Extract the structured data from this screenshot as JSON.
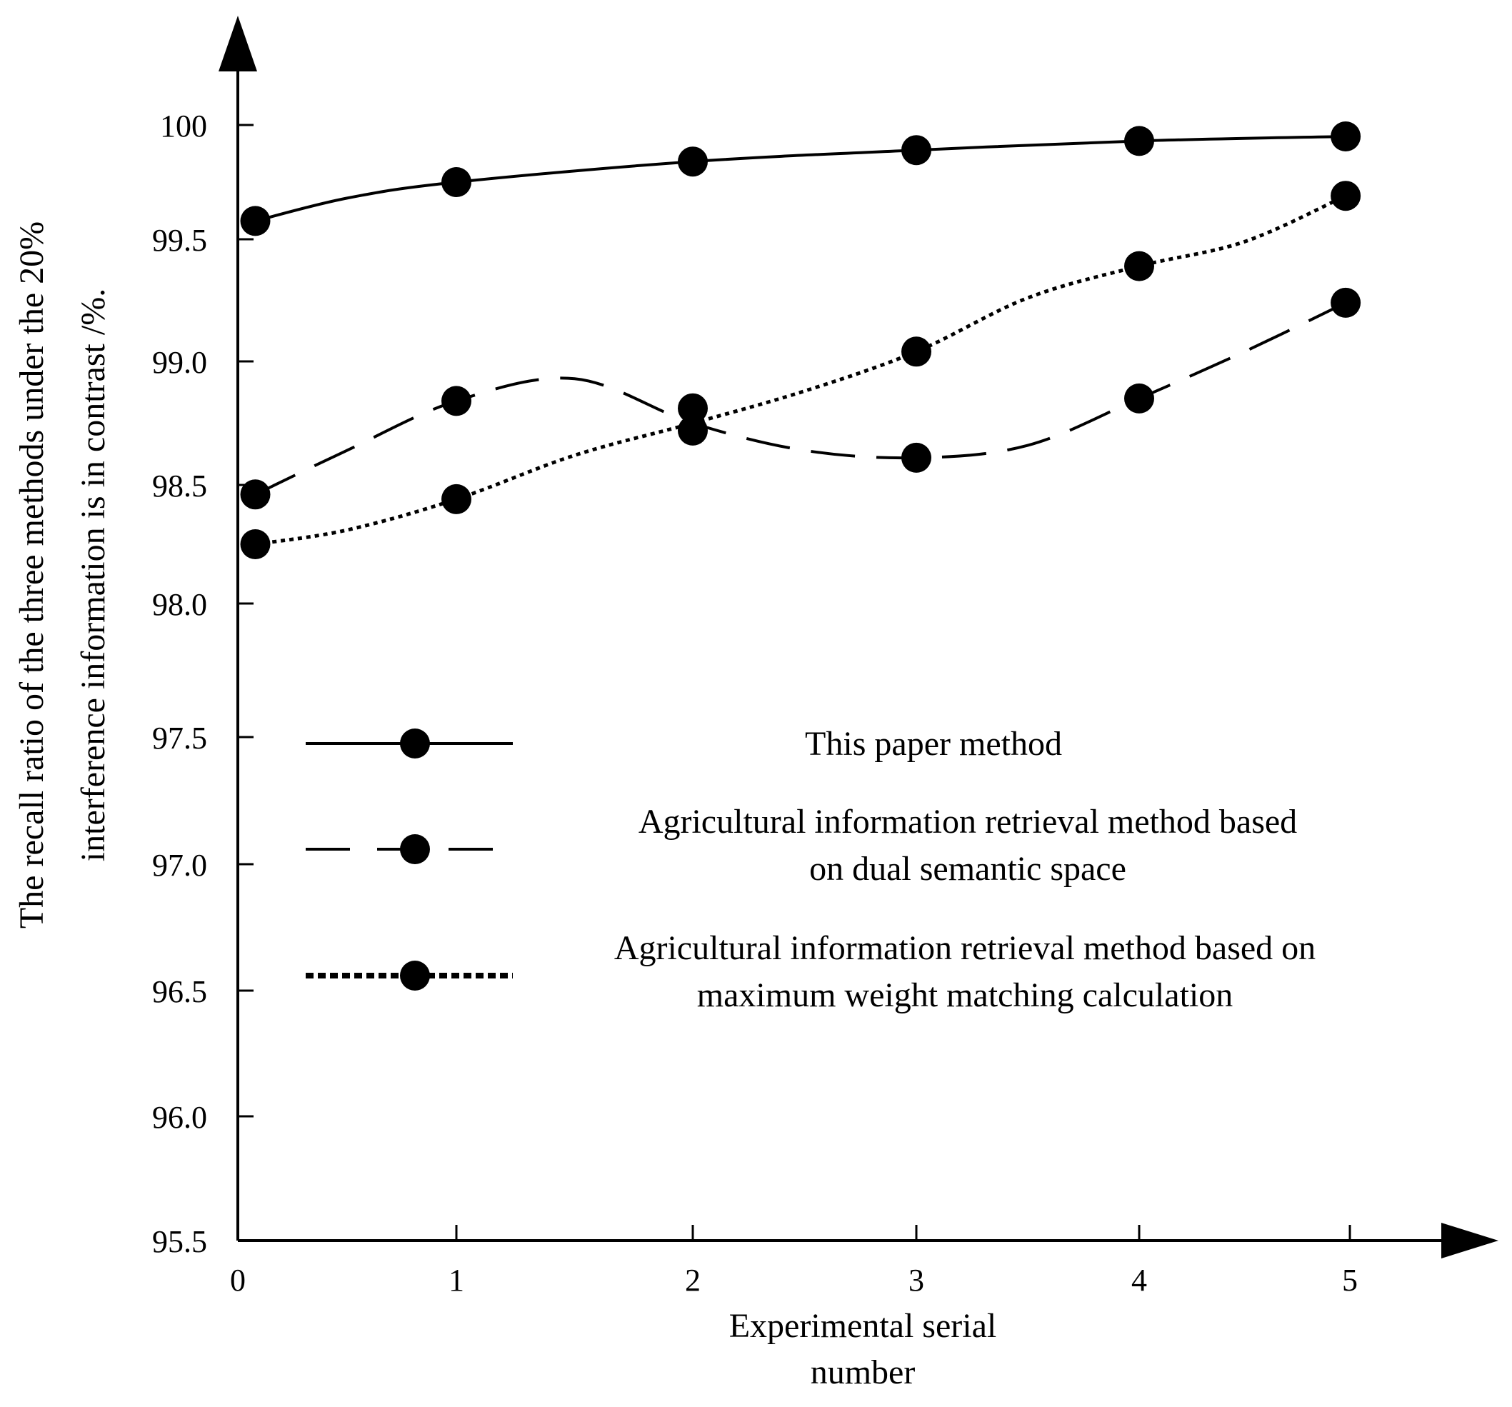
{
  "chart_data": {
    "type": "line",
    "title": "",
    "xlabel_lines": [
      "Experimental serial",
      "number"
    ],
    "ylabel_lines": [
      "The recall ratio of the three methods under the 20%",
      "interference information is in contrast /%."
    ],
    "x_ticks": [
      "0",
      "1",
      "2",
      "3",
      "4",
      "5"
    ],
    "y_ticks": [
      {
        "value": 95.5,
        "label": "95.5"
      },
      {
        "value": 96.0,
        "label": "96.0"
      },
      {
        "value": 96.5,
        "label": "96.5"
      },
      {
        "value": 97.0,
        "label": "97.0"
      },
      {
        "value": 97.5,
        "label": "97.5"
      },
      {
        "value": 98.0,
        "label": "98.0"
      },
      {
        "value": 98.5,
        "label": "98.5"
      },
      {
        "value": 99.0,
        "label": "99.0"
      },
      {
        "value": 99.5,
        "label": "99.5"
      },
      {
        "value": 100.0,
        "label": "100"
      }
    ],
    "series": [
      {
        "name": "This paper method",
        "legend_lines": [
          "This paper method"
        ],
        "style": "solid",
        "x": [
          0.08,
          1.0,
          2.0,
          3.0,
          4.0,
          4.98
        ],
        "values": [
          99.58,
          99.75,
          99.84,
          99.89,
          99.93,
          99.95
        ],
        "curve": [
          [
            0.08,
            99.58
          ],
          [
            0.5,
            99.68
          ],
          [
            1.0,
            99.75
          ],
          [
            2.0,
            99.84
          ],
          [
            3.0,
            99.89
          ],
          [
            4.0,
            99.93
          ],
          [
            4.98,
            99.95
          ]
        ]
      },
      {
        "name": "Agricultural information retrieval method based on dual semantic space",
        "legend_lines": [
          "Agricultural information retrieval method based",
          "on dual semantic space"
        ],
        "style": "dashed",
        "x": [
          0.08,
          1.0,
          2.0,
          3.0,
          4.0,
          4.98
        ],
        "values": [
          98.46,
          98.84,
          98.72,
          98.61,
          98.85,
          99.24
        ],
        "curve": [
          [
            0.08,
            98.46
          ],
          [
            0.5,
            98.64
          ],
          [
            1.0,
            98.84
          ],
          [
            1.5,
            98.93
          ],
          [
            2.0,
            98.75
          ],
          [
            2.5,
            98.64
          ],
          [
            3.0,
            98.61
          ],
          [
            3.5,
            98.66
          ],
          [
            4.0,
            98.85
          ],
          [
            4.5,
            99.04
          ],
          [
            4.98,
            99.24
          ]
        ]
      },
      {
        "name": "Agricultural information retrieval method based on maximum weight matching calculation",
        "legend_lines": [
          "Agricultural information retrieval method based on",
          "maximum weight matching calculation"
        ],
        "style": "dotted",
        "x": [
          0.08,
          1.0,
          2.0,
          3.0,
          4.0,
          4.98
        ],
        "values": [
          98.25,
          98.44,
          98.81,
          99.04,
          99.39,
          99.69
        ],
        "curve": [
          [
            0.08,
            98.25
          ],
          [
            0.5,
            98.31
          ],
          [
            1.0,
            98.44
          ],
          [
            1.5,
            98.62
          ],
          [
            2.0,
            98.75
          ],
          [
            2.5,
            98.88
          ],
          [
            3.0,
            99.04
          ],
          [
            3.5,
            99.26
          ],
          [
            4.0,
            99.39
          ],
          [
            4.5,
            99.49
          ],
          [
            4.98,
            99.69
          ]
        ]
      }
    ],
    "legend_position": "center",
    "grid": false
  }
}
